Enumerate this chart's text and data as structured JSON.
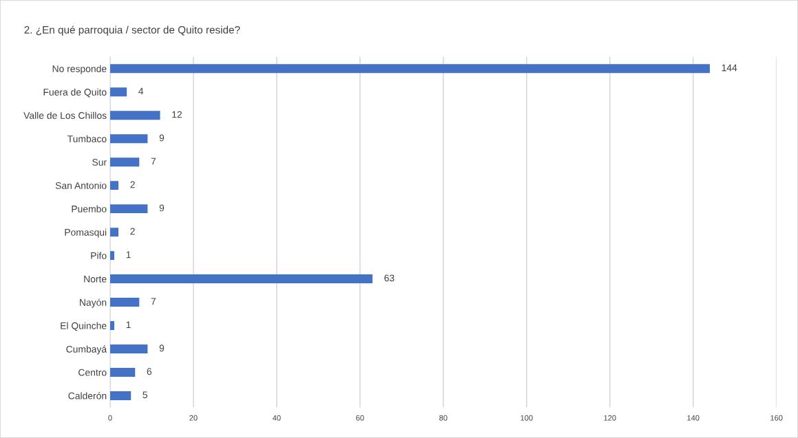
{
  "chart_data": {
    "type": "bar",
    "orientation": "horizontal",
    "title": "2. ¿En qué parroquia / sector de Quito reside?",
    "categories": [
      "No responde",
      "Fuera de Quito",
      "Valle de Los Chillos",
      "Tumbaco",
      "Sur",
      "San Antonio",
      "Puembo",
      "Pomasqui",
      "Pifo",
      "Norte",
      "Nayón",
      "El Quinche",
      "Cumbayá",
      "Centro",
      "Calderón"
    ],
    "values": [
      144,
      4,
      12,
      9,
      7,
      2,
      9,
      2,
      1,
      63,
      7,
      1,
      9,
      6,
      5
    ],
    "color": "#4472c4",
    "xlim": [
      0,
      160
    ],
    "xticks": [
      0,
      20,
      40,
      60,
      80,
      100,
      120,
      140,
      160
    ],
    "grid": "x",
    "data_labels": true
  }
}
